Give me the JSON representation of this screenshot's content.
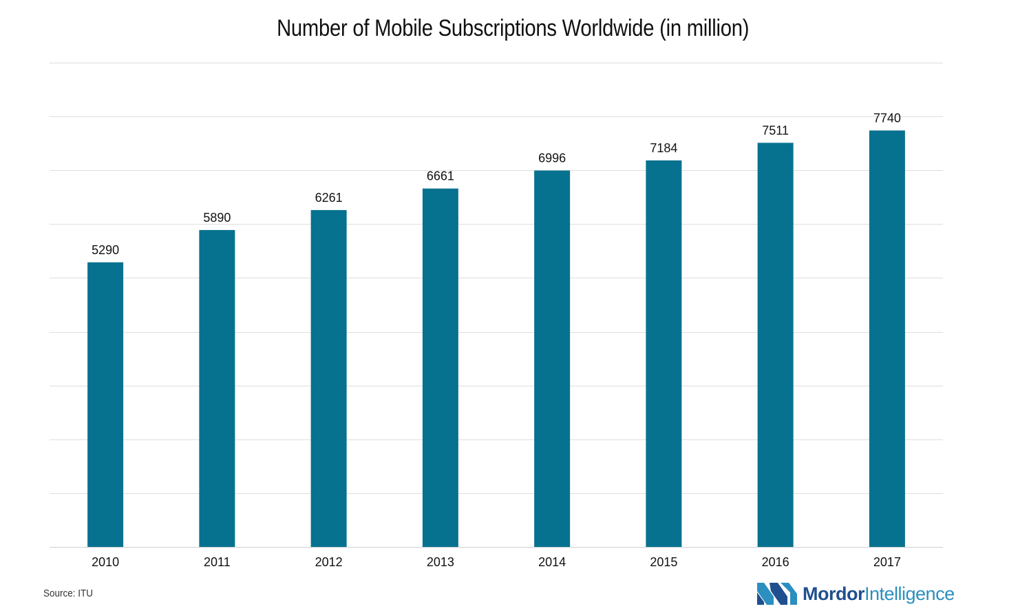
{
  "chart_data": {
    "type": "bar",
    "title": "Number of Mobile Subscriptions Worldwide (in million)",
    "xlabel": "",
    "ylabel": "",
    "categories": [
      "2010",
      "2011",
      "2012",
      "2013",
      "2014",
      "2015",
      "2016",
      "2017"
    ],
    "values": [
      5290,
      5890,
      6261,
      6661,
      6996,
      7184,
      7511,
      7740
    ],
    "ylim": [
      0,
      9000
    ],
    "grid": true,
    "bar_color": "#07728f"
  },
  "source": "Source: ITU",
  "brand": {
    "name_part1": "Mordor",
    "name_part2": "Intelligence",
    "primary_color": "#1f4f8f",
    "secondary_color": "#2b8fbf"
  }
}
